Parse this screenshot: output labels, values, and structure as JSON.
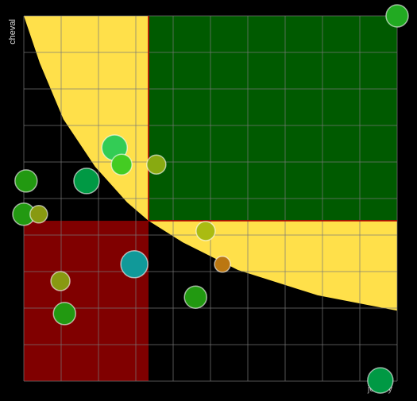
{
  "chart_data": {
    "type": "bubble",
    "x_label": "jockey",
    "y_label": "cheval",
    "xlim": [
      0,
      10
    ],
    "ylim": [
      0,
      10
    ],
    "xticks": [
      0,
      1,
      2,
      3,
      4,
      5,
      6,
      7,
      8,
      9,
      10
    ],
    "yticks": [
      0,
      1,
      2,
      3,
      4,
      5,
      6,
      7,
      8,
      9,
      10
    ],
    "grid": true,
    "split": {
      "x": 3.34,
      "y": 4.39
    },
    "low_color": "#800000",
    "high_color": "#005a00",
    "band_color": "#ffe04a",
    "curve": {
      "x": [
        0,
        0.43,
        1.06,
        1.91,
        2.77,
        3.34,
        4.26,
        5.74,
        7.87,
        10
      ],
      "y": [
        10,
        8.7,
        7.17,
        5.87,
        4.89,
        4.39,
        3.8,
        3.04,
        2.35,
        1.93
      ]
    },
    "x": [
      10,
      2.43,
      2.62,
      3.55,
      0.06,
      1.68,
      0,
      0.4,
      4.87,
      2.96,
      5.32,
      0.98,
      1.09,
      4.6,
      9.55
    ],
    "values": [
      10,
      6.39,
      5.93,
      5.93,
      5.48,
      5.48,
      4.57,
      4.57,
      4.11,
      3.2,
      3.2,
      2.74,
      1.85,
      2.3,
      0.02
    ],
    "sizes": [
      14,
      16,
      13,
      12,
      14,
      16,
      14,
      11,
      12,
      17,
      10,
      12,
      14,
      14,
      16
    ],
    "colors": [
      "#22aa22",
      "#33cc55",
      "#44cc22",
      "#88aa11",
      "#229911",
      "#009944",
      "#229911",
      "#889911",
      "#aabb11",
      "#119999",
      "#bb7711",
      "#889911",
      "#229911",
      "#229911",
      "#009944"
    ]
  }
}
